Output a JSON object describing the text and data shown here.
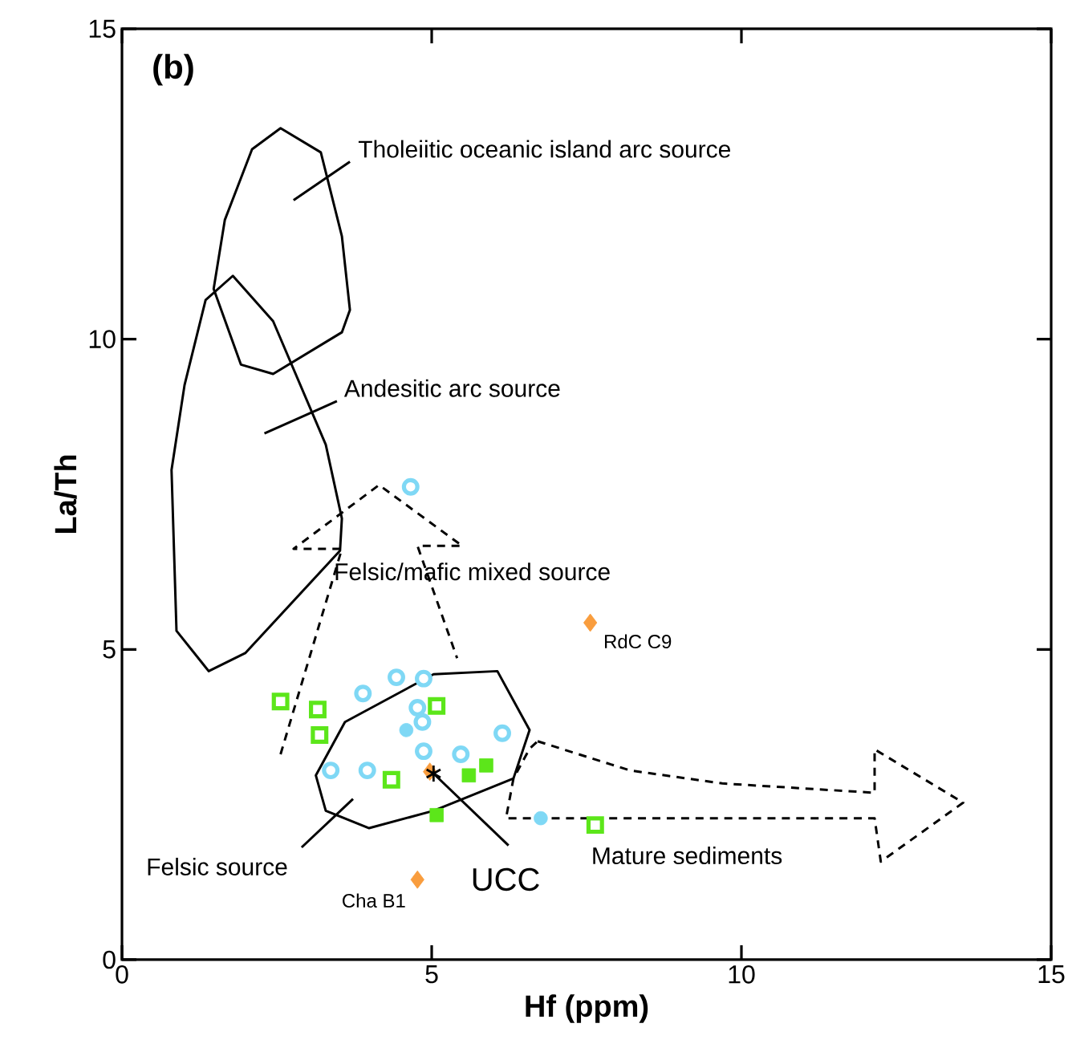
{
  "chart_data": {
    "type": "scatter",
    "xlabel": "Hf (ppm)",
    "ylabel": "La/Th",
    "xlim": [
      0,
      15
    ],
    "ylim": [
      0,
      15
    ],
    "xticks": [
      0,
      5,
      10,
      15
    ],
    "yticks": [
      0,
      5,
      10,
      15
    ],
    "grid": false,
    "annotations": [
      "(b)",
      "Tholeiitic oceanic island arc source",
      "Andesitic arc source",
      "Felsic/mafic mixed source",
      {
        "text": "RdC C9",
        "x": 7.56,
        "y": 5.43
      },
      "Felsic source",
      {
        "text": "Cha B1",
        "x": 4.77,
        "y": 1.29
      },
      {
        "text": "UCC",
        "x": 5.03,
        "y": 3.0
      },
      "Mature sediments"
    ],
    "series": [
      {
        "color": "#7fd8f5",
        "marker": "circle",
        "x": [
          4.66,
          3.89,
          4.43,
          4.87,
          4.77,
          4.85,
          4.87,
          5.47,
          6.14,
          3.37,
          3.96
        ],
        "values": [
          7.62,
          4.29,
          4.55,
          4.53,
          4.06,
          3.83,
          3.36,
          3.31,
          3.65,
          3.05,
          3.05
        ]
      },
      {
        "color": "#7fd8f5",
        "marker": "circle",
        "x": [
          4.59,
          6.76
        ],
        "values": [
          3.7,
          2.28
        ]
      },
      {
        "color": "#5ce61a",
        "marker": "square",
        "x": [
          2.56,
          3.16,
          3.19,
          5.08,
          4.35,
          7.64
        ],
        "values": [
          4.16,
          4.03,
          3.62,
          4.09,
          2.9,
          2.17
        ]
      },
      {
        "color": "#5ce61a",
        "marker": "square",
        "x": [
          5.6,
          5.88,
          5.08
        ],
        "values": [
          2.97,
          3.13,
          2.33
        ]
      },
      {
        "color": "#f99d3e",
        "marker": "diamond",
        "x": [
          7.56,
          4.77,
          4.97
        ],
        "values": [
          5.43,
          1.29,
          3.03
        ]
      },
      {
        "color": "#000000",
        "marker": "cross",
        "x": [
          5.03
        ],
        "values": [
          3.0
        ]
      }
    ]
  }
}
